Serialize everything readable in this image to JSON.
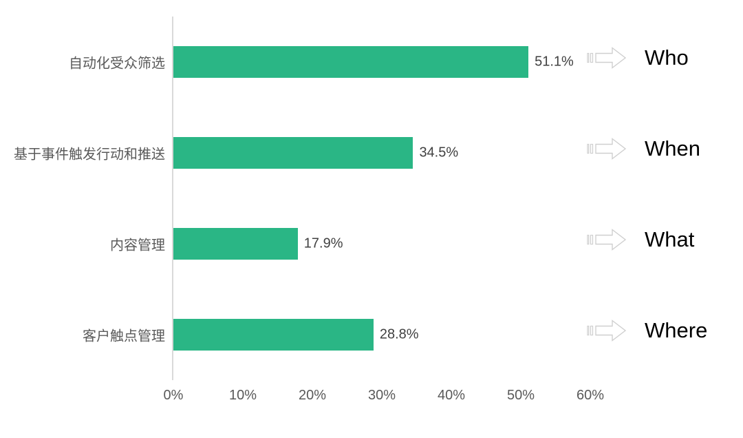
{
  "chart_data": {
    "type": "bar",
    "orientation": "horizontal",
    "title": "",
    "categories": [
      "自动化受众筛选",
      "基于事件触发行动和推送",
      "内容管理",
      "客户触点管理"
    ],
    "values": [
      51.1,
      34.5,
      17.9,
      28.8
    ],
    "value_labels": [
      "51.1%",
      "34.5%",
      "17.9%",
      "28.8%"
    ],
    "annotations": [
      "Who",
      "When",
      "What",
      "Where"
    ],
    "x_ticks": [
      "0%",
      "10%",
      "20%",
      "30%",
      "40%",
      "50%",
      "60%"
    ],
    "xlim": [
      0,
      60
    ],
    "grid": "off",
    "legend": "none",
    "colors": {
      "bar": "#2ab685",
      "axis_line": "#d9d9d9",
      "category_label": "#595959",
      "value_label": "#404040",
      "tick_label": "#595959",
      "annotation_text": "#000000",
      "arrow_outline": "#cfcfcf",
      "arrow_fill": "#ffffff"
    }
  }
}
